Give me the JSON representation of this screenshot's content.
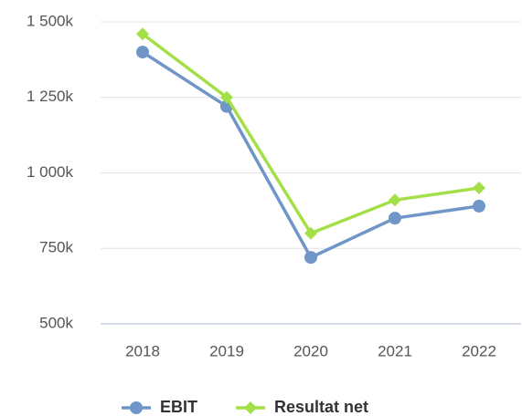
{
  "chart_data": {
    "type": "line",
    "categories": [
      "2018",
      "2019",
      "2020",
      "2021",
      "2022"
    ],
    "series": [
      {
        "name": "EBIT",
        "color": "#7096c8",
        "marker": "circle",
        "values": [
          1400000,
          1220000,
          720000,
          850000,
          890000
        ]
      },
      {
        "name": "Resultat net",
        "color": "#a3e048",
        "marker": "diamond",
        "values": [
          1460000,
          1250000,
          800000,
          910000,
          950000
        ]
      }
    ],
    "ylim": [
      500000,
      1500000
    ],
    "yticks": [
      {
        "value": 500000,
        "label": "500k"
      },
      {
        "value": 750000,
        "label": "750k"
      },
      {
        "value": 1000000,
        "label": "1 000k"
      },
      {
        "value": 1250000,
        "label": "1 250k"
      },
      {
        "value": 1500000,
        "label": "1 500k"
      }
    ],
    "grid": true,
    "legend": "bottom"
  }
}
